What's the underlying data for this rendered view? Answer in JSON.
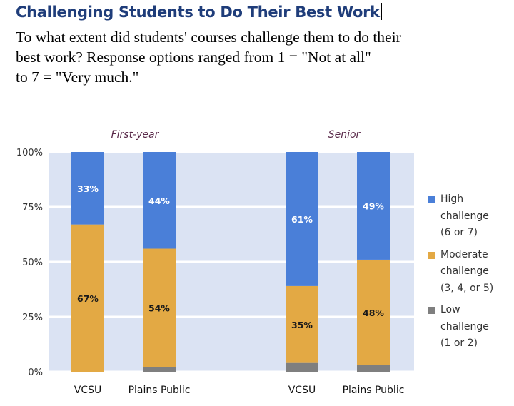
{
  "page": {
    "title": "Challenging Students to Do Their Best Work",
    "subtitle_lines": [
      "To what extent did students' courses challenge them to do their",
      "best work? Response options ranged from 1 = \"Not at all\"",
      "to 7 = \"Very much.\""
    ]
  },
  "chart_data": {
    "type": "bar",
    "stacked": true,
    "groups": [
      {
        "label": "First-year",
        "categories": [
          "VCSU",
          "Plains Public"
        ]
      },
      {
        "label": "Senior",
        "categories": [
          "VCSU",
          "Plains Public"
        ]
      }
    ],
    "categories": [
      "VCSU",
      "Plains Public",
      "VCSU",
      "Plains Public"
    ],
    "series": [
      {
        "name": "Low challenge (1 or 2)",
        "legend_lines": [
          "Low",
          "challenge",
          "(1 or 2)"
        ],
        "color": "#7f7f7f",
        "values": [
          0,
          2,
          4,
          3
        ],
        "labels": [
          "",
          "",
          "",
          ""
        ]
      },
      {
        "name": "Moderate challenge (3, 4, or 5)",
        "legend_lines": [
          "Moderate",
          "challenge",
          "(3, 4, or 5)"
        ],
        "color": "#e3a944",
        "values": [
          67,
          54,
          35,
          48
        ],
        "labels": [
          "67%",
          "54%",
          "35%",
          "48%"
        ]
      },
      {
        "name": "High challenge (6 or 7)",
        "legend_lines": [
          "High",
          "challenge",
          "(6 or 7)"
        ],
        "color": "#4a7fd8",
        "values": [
          33,
          44,
          61,
          49
        ],
        "labels": [
          "33%",
          "44%",
          "61%",
          "49%"
        ]
      }
    ],
    "ylim": [
      0,
      100
    ],
    "yticks": [
      0,
      25,
      50,
      75,
      100
    ],
    "ytick_labels": [
      "0%",
      "25%",
      "50%",
      "75%",
      "100%"
    ],
    "grid": true,
    "legend_position": "right",
    "colors": {
      "plot_background": "#dbe3f3",
      "gridline": "#ffffff",
      "group_label": "#5a2a4a"
    }
  }
}
